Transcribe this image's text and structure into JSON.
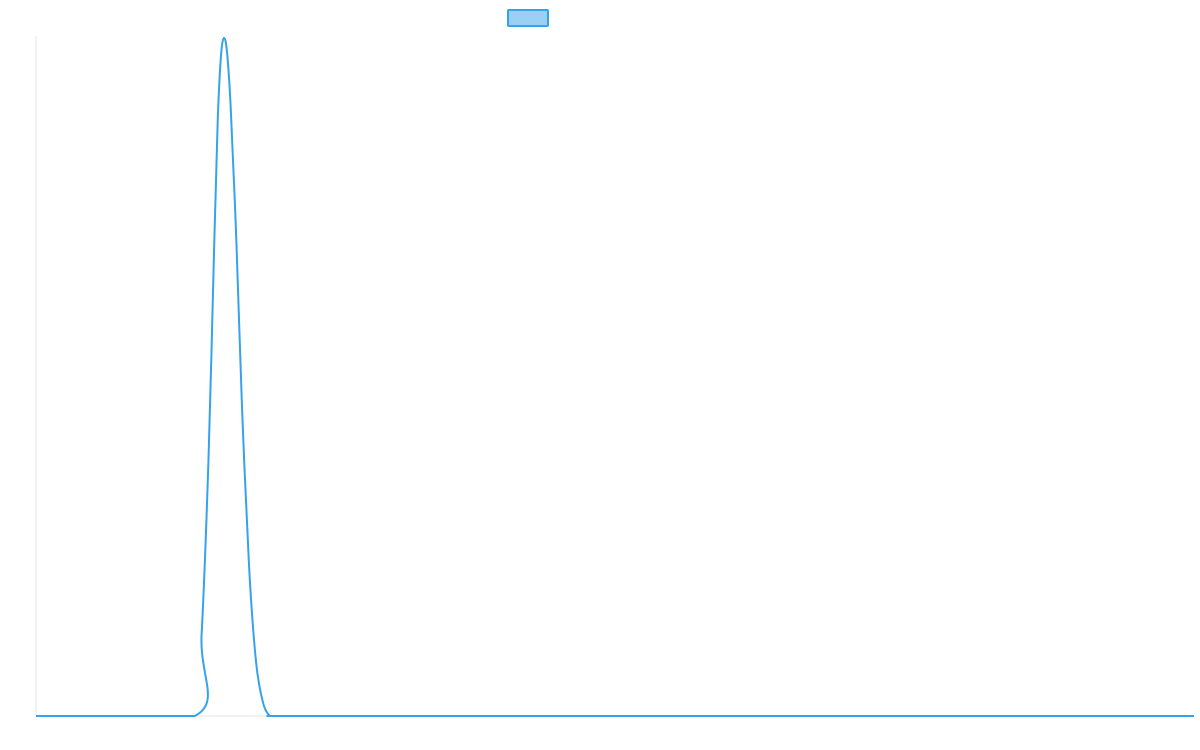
{
  "chart_data": {
    "type": "line",
    "title": "",
    "xlabel": "",
    "ylabel": "",
    "grid": false,
    "legend": {
      "placement": "top-center",
      "entries": [
        ""
      ]
    },
    "xlim": [
      0,
      100
    ],
    "ylim": [
      0,
      1
    ],
    "series": [
      {
        "color": "#36a2eb",
        "fill": "#9ad0f5",
        "x": [
          0,
          13.7,
          14.3,
          14.9,
          15.4,
          15.7,
          16.05,
          16.4,
          16.8,
          17.3,
          17.8,
          18.4,
          19.0,
          19.6,
          20.2,
          20.8,
          30,
          50,
          70,
          100
        ],
        "y": [
          0,
          0,
          0.12,
          0.38,
          0.7,
          0.88,
          0.985,
          0.99,
          0.9,
          0.7,
          0.45,
          0.22,
          0.08,
          0.02,
          0.0,
          0,
          0,
          0,
          0,
          0
        ]
      }
    ]
  }
}
